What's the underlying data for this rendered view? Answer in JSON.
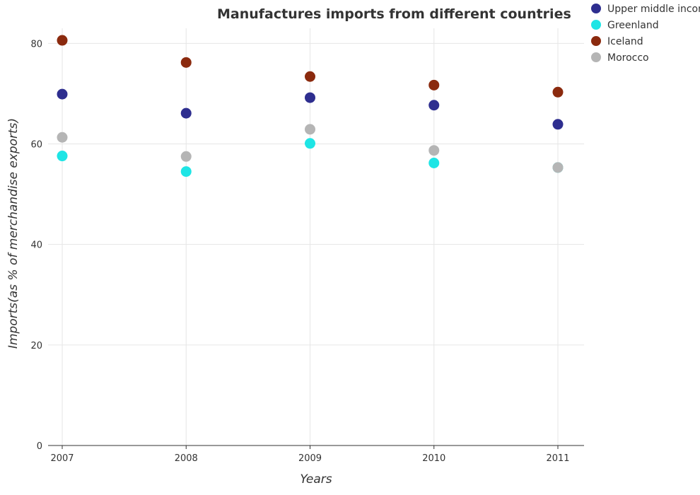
{
  "chart_data": {
    "type": "scatter",
    "title": "Manufactures imports from different countries",
    "xlabel": "Years",
    "ylabel": "Imports(as % of merchandise exports)",
    "categories": [
      "2007",
      "2008",
      "2009",
      "2010",
      "2011"
    ],
    "ylim": [
      0,
      83
    ],
    "yticks": [
      0,
      20,
      40,
      60,
      80
    ],
    "grid": true,
    "legend_position": "top-right",
    "series": [
      {
        "name": "Upper middle income",
        "color": "#2e2e8f",
        "values": [
          69.9,
          66.1,
          69.2,
          67.7,
          63.9
        ]
      },
      {
        "name": "Greenland",
        "color": "#1ee5e5",
        "values": [
          57.6,
          54.5,
          60.1,
          56.2,
          55.3
        ]
      },
      {
        "name": "Iceland",
        "color": "#8b2a0e",
        "values": [
          80.6,
          76.2,
          73.4,
          71.7,
          70.3
        ]
      },
      {
        "name": "Morocco",
        "color": "#b5b5b5",
        "values": [
          61.3,
          57.5,
          62.9,
          58.7,
          55.3
        ]
      }
    ]
  }
}
